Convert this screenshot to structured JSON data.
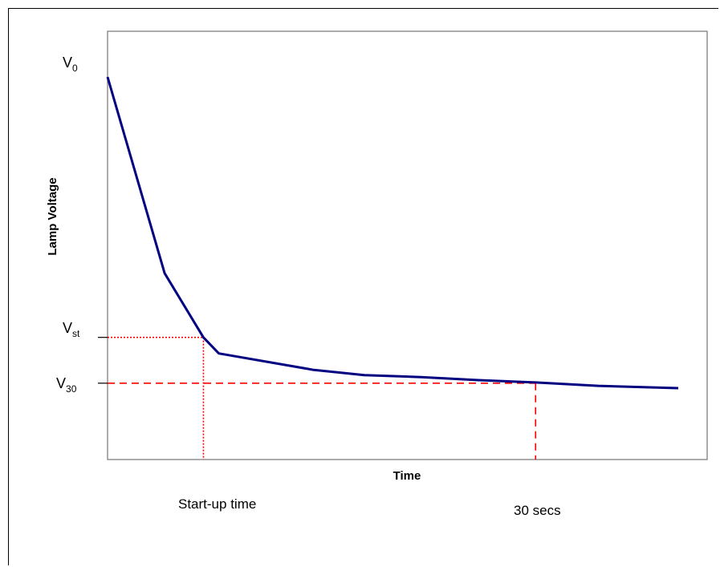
{
  "chart_data": {
    "type": "line",
    "title": "",
    "xlabel": "Time",
    "ylabel": "Lamp Voltage",
    "xlim": [
      0,
      100
    ],
    "ylim": [
      0,
      100
    ],
    "series": [
      {
        "color": "#000080",
        "x": [
          0,
          10,
          16.8,
          18.4,
          19.5,
          36,
          45,
          55,
          65,
          75,
          86,
          100
        ],
        "y": [
          100,
          48.6,
          31.8,
          29.3,
          27.6,
          23.3,
          21.9,
          21.4,
          20.6,
          20.0,
          19.1,
          18.5
        ]
      }
    ],
    "reference_lines": [
      {
        "name": "Vst",
        "style": "dotted",
        "color": "#ff0000",
        "y": 31.8,
        "x": 16.8,
        "y_label": {
          "main": "V",
          "sub": "st"
        },
        "x_label": "Start-up time"
      },
      {
        "name": "V30",
        "style": "dashed",
        "color": "#ff0000",
        "y": 19.8,
        "x": 75,
        "y_label": {
          "main": "V",
          "sub": "30"
        },
        "x_label": "30 secs"
      }
    ],
    "top_label": {
      "main": "V",
      "sub": "0"
    },
    "axis_color": "#808080",
    "grid": false
  }
}
